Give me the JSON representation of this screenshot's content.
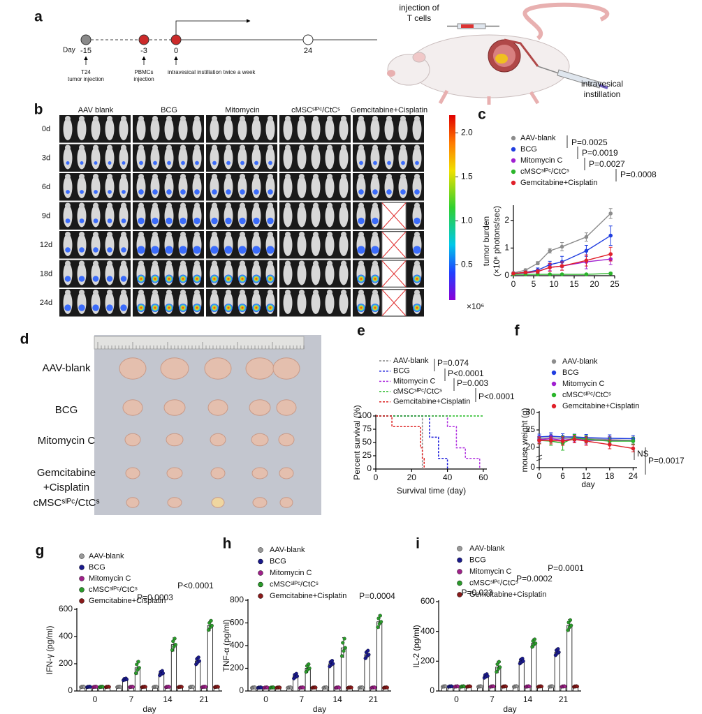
{
  "panel_labels": [
    "a",
    "b",
    "c",
    "d",
    "e",
    "f",
    "g",
    "h",
    "i"
  ],
  "timeline": {
    "day_label": "Day",
    "days": [
      -15,
      -3,
      0,
      24
    ],
    "events": [
      [
        "T24",
        "tumor injection"
      ],
      [
        "PBMCs",
        "injection"
      ],
      [
        "intravesical instillation twice a week"
      ]
    ]
  },
  "illustration": {
    "labels": [
      [
        "injection of",
        "T cells"
      ],
      [
        "intravesical",
        "instillation"
      ]
    ]
  },
  "imaging": {
    "groups": [
      "AAV blank",
      "BCG",
      "Mitomycin",
      "cMSCˢᴵᴾᶜ/CtCˢ",
      "Gemcitabine+Cisplatin"
    ],
    "days": [
      "0d",
      "3d",
      "6d",
      "9d",
      "12d",
      "18d",
      "24d"
    ]
  },
  "colorbar": {
    "clim": [
      0.1,
      2.2
    ],
    "ticks": [
      {
        "value": 2,
        "label": "2.0"
      },
      {
        "value": 1.5,
        "label": "1.5"
      },
      {
        "value": 1,
        "label": "1.0"
      },
      {
        "value": 0.5,
        "label": "0.5"
      }
    ],
    "unit": "×10⁶"
  },
  "photo": {
    "rows": [
      [
        "AAV-blank"
      ],
      [
        "BCG"
      ],
      [
        "Mitomycin C"
      ],
      [
        "Gemcitabine",
        "+Cisplatin"
      ],
      [
        "cMSCˢᴵᴾᶜ/CtCˢ"
      ]
    ]
  },
  "chart_data": [
    {
      "type": "line",
      "ylabel": [
        "tumor burden",
        "(×10⁶ photons/sec)"
      ],
      "x": [
        0,
        3,
        6,
        9,
        12,
        18,
        24
      ],
      "xlim": [
        0,
        25
      ],
      "xticks": [
        0,
        5,
        10,
        15,
        20,
        25
      ],
      "ylim": [
        0,
        2.5
      ],
      "yticks": [
        0,
        1,
        2
      ],
      "series": [
        {
          "name": "AAV-blank",
          "color": "#8c8c8c",
          "values": [
            0.1,
            0.2,
            0.45,
            0.9,
            1.05,
            1.4,
            2.25
          ],
          "errors": [
            0.03,
            0.05,
            0.06,
            0.08,
            0.15,
            0.15,
            0.18
          ]
        },
        {
          "name": "BCG",
          "color": "#1f3de0",
          "values": [
            0.08,
            0.12,
            0.2,
            0.4,
            0.5,
            0.9,
            1.45
          ],
          "errors": [
            0.02,
            0.04,
            0.08,
            0.12,
            0.2,
            0.2,
            0.35
          ]
        },
        {
          "name": "Mitomycin C",
          "color": "#a020d0",
          "values": [
            0.07,
            0.1,
            0.15,
            0.3,
            0.35,
            0.5,
            0.6
          ],
          "errors": [
            0.02,
            0.03,
            0.05,
            0.12,
            0.15,
            0.25,
            0.2
          ]
        },
        {
          "name": "cMSCˢᴵᴾᶜ/CtCˢ",
          "color": "#2bb52b",
          "values": [
            0.05,
            0.05,
            0.05,
            0.05,
            0.05,
            0.05,
            0.08
          ],
          "errors": [
            0.01,
            0.01,
            0.01,
            0.02,
            0.02,
            0.03,
            0.04
          ]
        },
        {
          "name": "Gemcitabine+Cisplatin",
          "color": "#e0202a",
          "values": [
            0.08,
            0.12,
            0.15,
            0.3,
            0.35,
            0.55,
            0.78
          ],
          "errors": [
            0.02,
            0.04,
            0.06,
            0.15,
            0.15,
            0.2,
            0.25
          ]
        }
      ],
      "annotations": [
        "P=0.0025",
        "P=0.0019",
        "P=0.0027",
        "P=0.0008"
      ]
    },
    {
      "type": "step",
      "dashed": true,
      "xlabel": "Survival time (day)",
      "ylabel": [
        "Percent survival (%)"
      ],
      "xlim": [
        0,
        62
      ],
      "xticks": [
        0,
        20,
        40,
        60
      ],
      "ylim": [
        0,
        100
      ],
      "yticks": [
        0,
        25,
        50,
        75,
        100
      ],
      "series": [
        {
          "name": "AAV-blank",
          "color": "#888888",
          "x": [
            0,
            26
          ],
          "values": [
            100,
            0
          ]
        },
        {
          "name": "BCG",
          "color": "#1a1adb",
          "x": [
            0,
            30,
            35,
            40
          ],
          "values": [
            100,
            60,
            20,
            0
          ]
        },
        {
          "name": "Mitomycin C",
          "color": "#b030e0",
          "x": [
            0,
            40,
            45,
            50,
            58
          ],
          "values": [
            100,
            80,
            40,
            20,
            0
          ]
        },
        {
          "name": "cMSCˢᴵᴾᶜ/CtCˢ",
          "color": "#22bb22",
          "x": [
            0,
            60
          ],
          "values": [
            100,
            100
          ]
        },
        {
          "name": "Gemcitabine+Cisplatin",
          "color": "#dd2222",
          "x": [
            0,
            9,
            25,
            26,
            27
          ],
          "values": [
            100,
            80,
            40,
            20,
            0
          ]
        }
      ],
      "annotations": [
        "P=0.074",
        "P<0.0001",
        "P=0.003",
        "P<0.0001"
      ]
    },
    {
      "type": "line",
      "xlabel": "day",
      "ylabel": [
        "mouse weight (g)"
      ],
      "x": [
        0,
        3,
        6,
        9,
        12,
        18,
        24
      ],
      "xlim": [
        0,
        25
      ],
      "xticks": [
        0,
        6,
        12,
        18,
        24
      ],
      "ylim": [
        0,
        30
      ],
      "yticks": [
        0,
        20,
        25,
        30
      ],
      "y_break": [
        0,
        18
      ],
      "series": [
        {
          "name": "AAV-blank",
          "color": "#8c8c8c",
          "values": [
            22.5,
            22.8,
            22.5,
            22.8,
            22.5,
            22.2,
            22.0
          ],
          "errors": [
            0.8,
            1.0,
            0.9,
            0.8,
            0.9,
            1.0,
            1.0
          ]
        },
        {
          "name": "BCG",
          "color": "#1f3de0",
          "values": [
            23,
            23.2,
            23,
            23,
            22.8,
            22.6,
            22.5
          ],
          "errors": [
            0.8,
            1.0,
            0.9,
            0.8,
            0.9,
            1.0,
            0.9
          ]
        },
        {
          "name": "Mitomycin C",
          "color": "#a020d0",
          "values": [
            22.2,
            22.5,
            22,
            22.5,
            22,
            22,
            21.8
          ],
          "errors": [
            0.9,
            1.0,
            1.0,
            0.9,
            1.0,
            1.0,
            1.0
          ]
        },
        {
          "name": "cMSCˢᴵᴾᶜ/CtCˢ",
          "color": "#2bb52b",
          "values": [
            22,
            21.8,
            21.2,
            22.8,
            22.3,
            21.8,
            21.8
          ],
          "errors": [
            0.9,
            1.2,
            2.0,
            0.9,
            1.0,
            1.0,
            1.0
          ]
        },
        {
          "name": "Gemcitabine+Cisplatin",
          "color": "#e0202a",
          "values": [
            22,
            22,
            21.8,
            22.3,
            21.8,
            20.8,
            19.7
          ],
          "errors": [
            1.0,
            1.0,
            1.2,
            1.0,
            1.2,
            1.2,
            1.0
          ]
        }
      ],
      "annotations": [
        "NS",
        "P=0.0017"
      ]
    },
    {
      "type": "bar",
      "xlabel": "day",
      "ylabel": [
        "IFN-γ (pg/ml)"
      ],
      "categories": [
        0,
        7,
        14,
        21
      ],
      "ylim": [
        0,
        600
      ],
      "yticks": [
        0,
        200,
        400,
        600
      ],
      "series": [
        {
          "name": "AAV-blank",
          "color": "#9a9a9a",
          "values": [
            30,
            30,
            30,
            30
          ],
          "errors": [
            3,
            3,
            3,
            3
          ]
        },
        {
          "name": "BCG",
          "color": "#1a1a8c",
          "values": [
            30,
            85,
            130,
            220
          ],
          "errors": [
            3,
            8,
            20,
            30
          ]
        },
        {
          "name": "Mitomycin C",
          "color": "#a0208a",
          "values": [
            30,
            30,
            30,
            30
          ],
          "errors": [
            3,
            3,
            3,
            3
          ]
        },
        {
          "name": "cMSCˢᴵᴾᶜ/CtCˢ",
          "color": "#2a9a2a",
          "values": [
            30,
            170,
            340,
            480
          ],
          "errors": [
            3,
            50,
            50,
            40
          ]
        },
        {
          "name": "Gemcitabine+Cisplatin",
          "color": "#8a1a1a",
          "values": [
            30,
            30,
            30,
            30
          ],
          "errors": [
            3,
            3,
            3,
            3
          ]
        }
      ],
      "annotations": [
        "P=0.0003",
        "P<0.0001"
      ]
    },
    {
      "type": "bar",
      "xlabel": "day",
      "ylabel": [
        "TNF-α (pg/ml)"
      ],
      "categories": [
        0,
        7,
        14,
        21
      ],
      "ylim": [
        0,
        800
      ],
      "yticks": [
        0,
        200,
        400,
        600,
        800
      ],
      "series": [
        {
          "name": "AAV-blank",
          "color": "#9a9a9a",
          "values": [
            30,
            30,
            30,
            30
          ],
          "errors": [
            3,
            3,
            3,
            3
          ]
        },
        {
          "name": "BCG",
          "color": "#1a1a8c",
          "values": [
            30,
            130,
            240,
            320
          ],
          "errors": [
            3,
            25,
            30,
            40
          ]
        },
        {
          "name": "Mitomycin C",
          "color": "#a0208a",
          "values": [
            30,
            30,
            30,
            30
          ],
          "errors": [
            3,
            3,
            3,
            3
          ]
        },
        {
          "name": "cMSCˢᴵᴾᶜ/CtCˢ",
          "color": "#2a9a2a",
          "values": [
            30,
            200,
            380,
            610
          ],
          "errors": [
            3,
            40,
            90,
            60
          ]
        },
        {
          "name": "Gemcitabine+Cisplatin",
          "color": "#8a1a1a",
          "values": [
            30,
            30,
            30,
            30
          ],
          "errors": [
            3,
            3,
            3,
            3
          ]
        }
      ],
      "annotations": [
        "P=0.0004"
      ]
    },
    {
      "type": "bar",
      "xlabel": "day",
      "ylabel": [
        "IL-2 (pg/ml)"
      ],
      "categories": [
        0,
        7,
        14,
        21
      ],
      "ylim": [
        0,
        600
      ],
      "yticks": [
        0,
        200,
        400,
        600
      ],
      "series": [
        {
          "name": "AAV-blank",
          "color": "#9a9a9a",
          "values": [
            30,
            30,
            30,
            30
          ],
          "errors": [
            3,
            3,
            3,
            3
          ]
        },
        {
          "name": "BCG",
          "color": "#1a1a8c",
          "values": [
            30,
            100,
            200,
            260
          ],
          "errors": [
            3,
            15,
            20,
            25
          ]
        },
        {
          "name": "Mitomycin C",
          "color": "#a0208a",
          "values": [
            30,
            30,
            30,
            30
          ],
          "errors": [
            3,
            3,
            3,
            3
          ]
        },
        {
          "name": "cMSCˢᴵᴾᶜ/CtCˢ",
          "color": "#2a9a2a",
          "values": [
            30,
            160,
            320,
            440
          ],
          "errors": [
            3,
            40,
            30,
            40
          ]
        },
        {
          "name": "Gemcitabine+Cisplatin",
          "color": "#8a1a1a",
          "values": [
            30,
            30,
            30,
            30
          ],
          "errors": [
            3,
            3,
            3,
            3
          ]
        }
      ],
      "annotations": [
        "P=0.023",
        "P=0.0002",
        "P=0.0001"
      ]
    }
  ]
}
